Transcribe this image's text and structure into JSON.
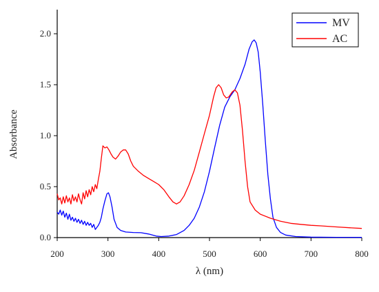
{
  "chart_data": {
    "type": "line",
    "title": "",
    "xlabel": "λ (nm)",
    "ylabel": "Absorbance",
    "xlim": [
      200,
      800
    ],
    "ylim": [
      0,
      2.2
    ],
    "x_ticks": [
      200,
      300,
      400,
      500,
      600,
      700,
      800
    ],
    "x_tick_labels": [
      "200",
      "300",
      "400",
      "500",
      "600",
      "700",
      "800"
    ],
    "y_ticks": [
      0,
      0.5,
      1,
      1.5,
      2
    ],
    "y_tick_labels": [
      "0.0",
      "0.5",
      "1.0",
      "1.5",
      "2.0"
    ],
    "grid": false,
    "legend": "top-right",
    "series": [
      {
        "name": "MV",
        "color": "#0000ff",
        "points": [
          [
            200,
            0.25
          ],
          [
            203,
            0.23
          ],
          [
            206,
            0.27
          ],
          [
            209,
            0.22
          ],
          [
            212,
            0.26
          ],
          [
            215,
            0.2
          ],
          [
            218,
            0.24
          ],
          [
            221,
            0.18
          ],
          [
            224,
            0.23
          ],
          [
            227,
            0.17
          ],
          [
            230,
            0.2
          ],
          [
            233,
            0.16
          ],
          [
            236,
            0.19
          ],
          [
            239,
            0.15
          ],
          [
            242,
            0.18
          ],
          [
            245,
            0.14
          ],
          [
            248,
            0.17
          ],
          [
            251,
            0.13
          ],
          [
            254,
            0.16
          ],
          [
            257,
            0.12
          ],
          [
            260,
            0.15
          ],
          [
            263,
            0.12
          ],
          [
            266,
            0.14
          ],
          [
            269,
            0.1
          ],
          [
            272,
            0.13
          ],
          [
            275,
            0.08
          ],
          [
            278,
            0.1
          ],
          [
            281,
            0.12
          ],
          [
            284,
            0.15
          ],
          [
            287,
            0.2
          ],
          [
            290,
            0.28
          ],
          [
            294,
            0.36
          ],
          [
            298,
            0.43
          ],
          [
            301,
            0.44
          ],
          [
            304,
            0.4
          ],
          [
            308,
            0.3
          ],
          [
            312,
            0.18
          ],
          [
            318,
            0.1
          ],
          [
            325,
            0.07
          ],
          [
            335,
            0.055
          ],
          [
            350,
            0.05
          ],
          [
            365,
            0.048
          ],
          [
            380,
            0.035
          ],
          [
            395,
            0.015
          ],
          [
            405,
            0.01
          ],
          [
            420,
            0.015
          ],
          [
            435,
            0.03
          ],
          [
            450,
            0.07
          ],
          [
            460,
            0.12
          ],
          [
            470,
            0.19
          ],
          [
            480,
            0.3
          ],
          [
            490,
            0.45
          ],
          [
            500,
            0.65
          ],
          [
            510,
            0.88
          ],
          [
            520,
            1.1
          ],
          [
            530,
            1.28
          ],
          [
            540,
            1.38
          ],
          [
            550,
            1.45
          ],
          [
            560,
            1.56
          ],
          [
            570,
            1.7
          ],
          [
            578,
            1.85
          ],
          [
            584,
            1.92
          ],
          [
            588,
            1.94
          ],
          [
            592,
            1.91
          ],
          [
            596,
            1.82
          ],
          [
            600,
            1.62
          ],
          [
            605,
            1.3
          ],
          [
            610,
            0.95
          ],
          [
            615,
            0.62
          ],
          [
            620,
            0.38
          ],
          [
            625,
            0.2
          ],
          [
            632,
            0.1
          ],
          [
            640,
            0.05
          ],
          [
            650,
            0.025
          ],
          [
            670,
            0.01
          ],
          [
            700,
            0.005
          ],
          [
            750,
            0.003
          ],
          [
            800,
            0.002
          ]
        ]
      },
      {
        "name": "AC",
        "color": "#ff0000",
        "points": [
          [
            200,
            0.43
          ],
          [
            203,
            0.37
          ],
          [
            206,
            0.39
          ],
          [
            209,
            0.33
          ],
          [
            212,
            0.4
          ],
          [
            215,
            0.34
          ],
          [
            218,
            0.41
          ],
          [
            221,
            0.35
          ],
          [
            224,
            0.39
          ],
          [
            227,
            0.33
          ],
          [
            230,
            0.42
          ],
          [
            233,
            0.36
          ],
          [
            236,
            0.4
          ],
          [
            239,
            0.35
          ],
          [
            242,
            0.43
          ],
          [
            245,
            0.37
          ],
          [
            248,
            0.33
          ],
          [
            251,
            0.44
          ],
          [
            254,
            0.38
          ],
          [
            257,
            0.46
          ],
          [
            260,
            0.4
          ],
          [
            263,
            0.47
          ],
          [
            266,
            0.42
          ],
          [
            269,
            0.5
          ],
          [
            272,
            0.45
          ],
          [
            275,
            0.52
          ],
          [
            278,
            0.48
          ],
          [
            281,
            0.57
          ],
          [
            284,
            0.65
          ],
          [
            287,
            0.78
          ],
          [
            290,
            0.9
          ],
          [
            294,
            0.88
          ],
          [
            298,
            0.89
          ],
          [
            302,
            0.86
          ],
          [
            306,
            0.82
          ],
          [
            310,
            0.79
          ],
          [
            315,
            0.77
          ],
          [
            320,
            0.8
          ],
          [
            325,
            0.84
          ],
          [
            330,
            0.86
          ],
          [
            335,
            0.86
          ],
          [
            340,
            0.82
          ],
          [
            345,
            0.75
          ],
          [
            350,
            0.7
          ],
          [
            360,
            0.65
          ],
          [
            370,
            0.61
          ],
          [
            380,
            0.58
          ],
          [
            390,
            0.55
          ],
          [
            400,
            0.52
          ],
          [
            410,
            0.47
          ],
          [
            420,
            0.4
          ],
          [
            428,
            0.35
          ],
          [
            435,
            0.33
          ],
          [
            442,
            0.35
          ],
          [
            450,
            0.41
          ],
          [
            460,
            0.52
          ],
          [
            470,
            0.66
          ],
          [
            480,
            0.84
          ],
          [
            490,
            1.02
          ],
          [
            500,
            1.2
          ],
          [
            508,
            1.38
          ],
          [
            513,
            1.47
          ],
          [
            518,
            1.5
          ],
          [
            523,
            1.47
          ],
          [
            528,
            1.4
          ],
          [
            533,
            1.37
          ],
          [
            538,
            1.38
          ],
          [
            545,
            1.43
          ],
          [
            550,
            1.45
          ],
          [
            555,
            1.42
          ],
          [
            560,
            1.3
          ],
          [
            565,
            1.05
          ],
          [
            570,
            0.75
          ],
          [
            575,
            0.5
          ],
          [
            580,
            0.35
          ],
          [
            590,
            0.27
          ],
          [
            600,
            0.23
          ],
          [
            620,
            0.19
          ],
          [
            640,
            0.16
          ],
          [
            660,
            0.14
          ],
          [
            680,
            0.13
          ],
          [
            700,
            0.12
          ],
          [
            720,
            0.115
          ],
          [
            750,
            0.105
          ],
          [
            780,
            0.095
          ],
          [
            800,
            0.09
          ]
        ]
      }
    ]
  }
}
